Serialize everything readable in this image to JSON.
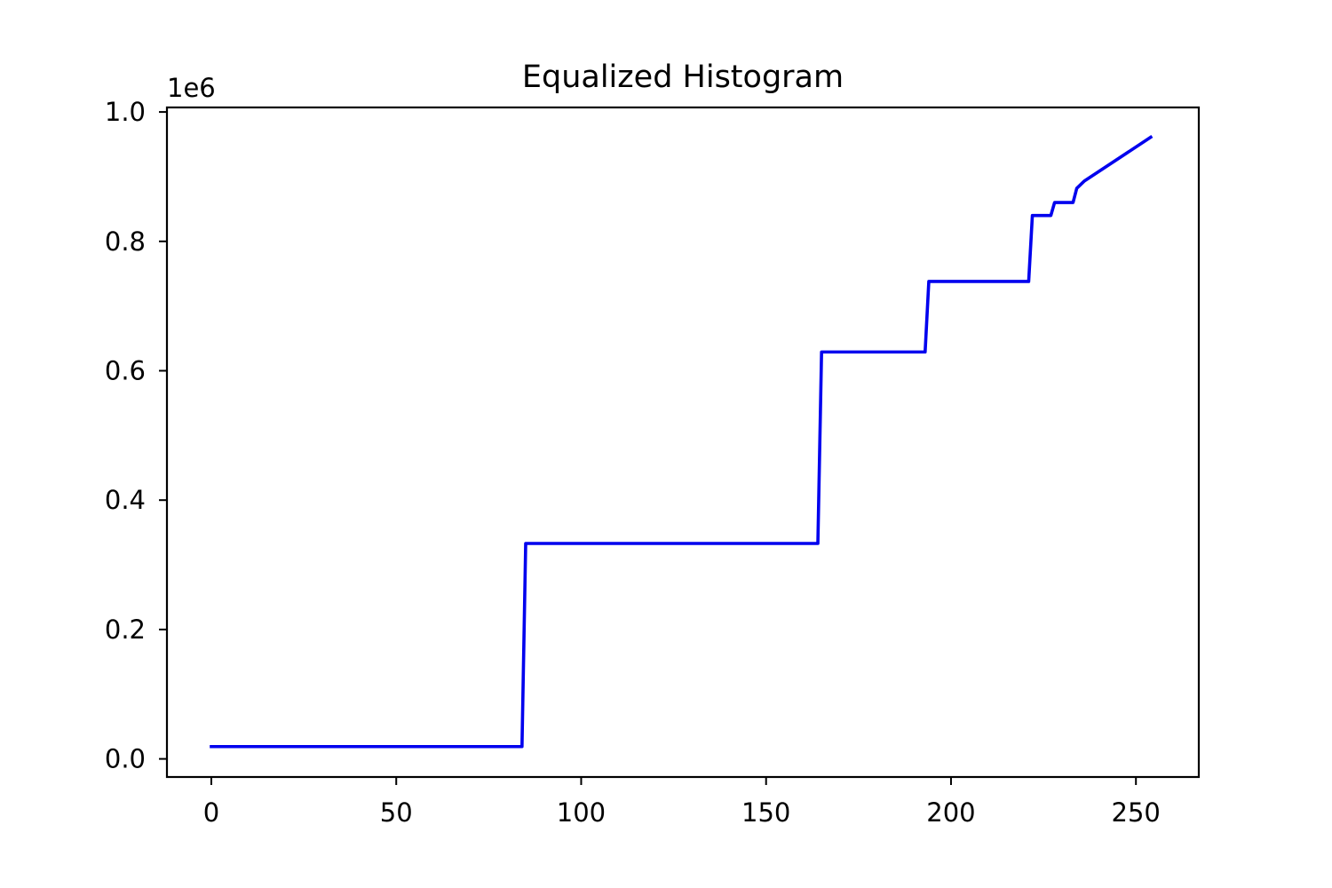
{
  "chart_data": {
    "type": "line",
    "title": "Equalized Histogram",
    "xlabel": "",
    "ylabel": "",
    "y_offset_label": "1e6",
    "xlim": [
      -12,
      267
    ],
    "ylim": [
      -0.028,
      1.007
    ],
    "x_ticks": [
      0,
      50,
      100,
      150,
      200,
      250
    ],
    "x_tick_labels": [
      "0",
      "50",
      "100",
      "150",
      "200",
      "250"
    ],
    "y_ticks": [
      0.0,
      0.2,
      0.4,
      0.6,
      0.8,
      1.0
    ],
    "y_tick_labels": [
      "0.0",
      "0.2",
      "0.4",
      "0.6",
      "0.8",
      "1.0"
    ],
    "grid": false,
    "series": [
      {
        "color": "#0000ee",
        "x": [
          0,
          84,
          85,
          164,
          165,
          193,
          194,
          221,
          222,
          227,
          228,
          233,
          234,
          236,
          254
        ],
        "y": [
          0.019,
          0.019,
          0.333,
          0.333,
          0.629,
          0.629,
          0.738,
          0.738,
          0.84,
          0.84,
          0.86,
          0.86,
          0.882,
          0.893,
          0.961
        ]
      }
    ]
  }
}
